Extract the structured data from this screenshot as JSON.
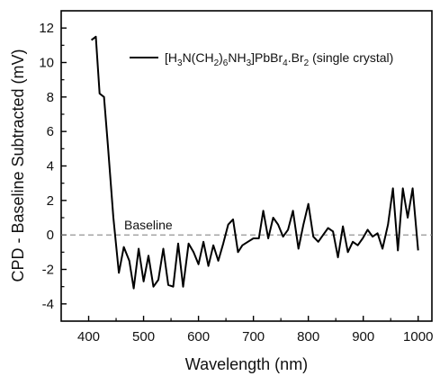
{
  "chart_data": {
    "type": "line",
    "xlabel": "Wavelength (nm)",
    "ylabel": "CPD - Baseline Subtracted (mV)",
    "xlim": [
      350,
      1025
    ],
    "ylim": [
      -5,
      13
    ],
    "xticks": [
      400,
      500,
      600,
      700,
      800,
      900,
      1000
    ],
    "yticks": [
      -4,
      -2,
      0,
      2,
      4,
      6,
      8,
      10,
      12
    ],
    "grid": false,
    "legend_position": "top-right",
    "series": [
      {
        "name": "[H3N(CH2)6NH3]PbBr4.Br2 (single crystal)",
        "color": "#000000",
        "x": [
          405,
          413,
          420,
          428,
          435,
          445,
          455,
          464,
          474,
          482,
          491,
          500,
          509,
          518,
          527,
          536,
          545,
          554,
          563,
          572,
          582,
          591,
          600,
          609,
          618,
          627,
          636,
          645,
          654,
          663,
          672,
          680,
          690,
          700,
          710,
          718,
          727,
          736,
          745,
          754,
          763,
          772,
          782,
          791,
          800,
          809,
          818,
          827,
          836,
          845,
          854,
          863,
          872,
          881,
          890,
          899,
          908,
          917,
          926,
          935,
          945,
          954,
          963,
          972,
          981,
          990,
          1000
        ],
        "y": [
          11.3,
          11.5,
          8.2,
          8.0,
          5.2,
          1.0,
          -2.2,
          -0.7,
          -1.5,
          -3.1,
          -0.8,
          -2.7,
          -1.2,
          -3.0,
          -2.6,
          -0.8,
          -2.9,
          -3.0,
          -0.5,
          -3.0,
          -0.5,
          -1.0,
          -1.7,
          -0.4,
          -1.8,
          -0.6,
          -1.5,
          -0.5,
          0.6,
          0.9,
          -1.0,
          -0.6,
          -0.4,
          -0.2,
          -0.2,
          1.4,
          -0.2,
          1.0,
          0.6,
          -0.1,
          0.3,
          1.4,
          -0.8,
          0.6,
          1.8,
          -0.1,
          -0.4,
          0.0,
          0.4,
          0.2,
          -1.3,
          0.5,
          -1.0,
          -0.4,
          -0.6,
          -0.2,
          0.3,
          -0.1,
          0.1,
          -0.8,
          0.6,
          2.7,
          -0.9,
          2.7,
          1.0,
          2.7,
          -0.9
        ]
      }
    ],
    "baseline": {
      "label": "Baseline",
      "y": 0,
      "color": "#888888"
    }
  },
  "legend": {
    "label_parts": {
      "a": "[H",
      "s1": "3",
      "b": "N(CH",
      "s2": "2",
      "c": ")",
      "s3": "6",
      "d": "NH",
      "s4": "3",
      "e": "]PbBr",
      "s5": "4",
      "f": ".Br",
      "s6": "2",
      "g": " (single crystal)"
    }
  }
}
